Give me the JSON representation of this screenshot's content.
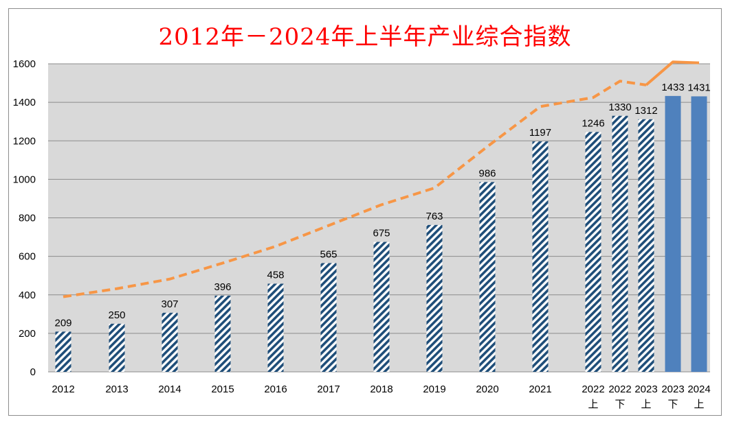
{
  "chart_data": {
    "type": "bar",
    "title": "2012年－2024年上半年产业综合指数",
    "categories": [
      "2012",
      "2013",
      "2014",
      "2015",
      "2016",
      "2017",
      "2018",
      "2019",
      "2020",
      "2021",
      "2022上",
      "2022下",
      "2023上",
      "2023下",
      "2024上"
    ],
    "category_lines": [
      [
        "2012"
      ],
      [
        "2013"
      ],
      [
        "2014"
      ],
      [
        "2015"
      ],
      [
        "2016"
      ],
      [
        "2017"
      ],
      [
        "2018"
      ],
      [
        "2019"
      ],
      [
        "2020"
      ],
      [
        "2021"
      ],
      [
        "2022",
        "上"
      ],
      [
        "2022",
        "下"
      ],
      [
        "2023",
        "上"
      ],
      [
        "2023",
        "下"
      ],
      [
        "2024",
        "上"
      ]
    ],
    "series": [
      {
        "type": "bar",
        "values": [
          209,
          250,
          307,
          396,
          458,
          565,
          675,
          763,
          986,
          1197,
          1246,
          1330,
          1312,
          1433,
          1431
        ],
        "fill_style": [
          "hatched",
          "hatched",
          "hatched",
          "hatched",
          "hatched",
          "hatched",
          "hatched",
          "hatched",
          "hatched",
          "hatched",
          "hatched",
          "hatched",
          "hatched",
          "solid",
          "solid"
        ],
        "color": "#1f4e79",
        "solid_color": "#4f81bd"
      },
      {
        "type": "line",
        "style": "dashed",
        "values": [
          390,
          432,
          482,
          565,
          652,
          760,
          868,
          955,
          1170,
          1378,
          1425,
          1510,
          1490,
          1610,
          1605
        ],
        "solid_from_index": 13,
        "color": "#f79646"
      }
    ],
    "ylim": [
      0,
      1600
    ],
    "yticks": [
      0,
      200,
      400,
      600,
      800,
      1000,
      1200,
      1400,
      1600
    ],
    "grid": true,
    "legend": "none",
    "background": "#d9d9d9"
  }
}
